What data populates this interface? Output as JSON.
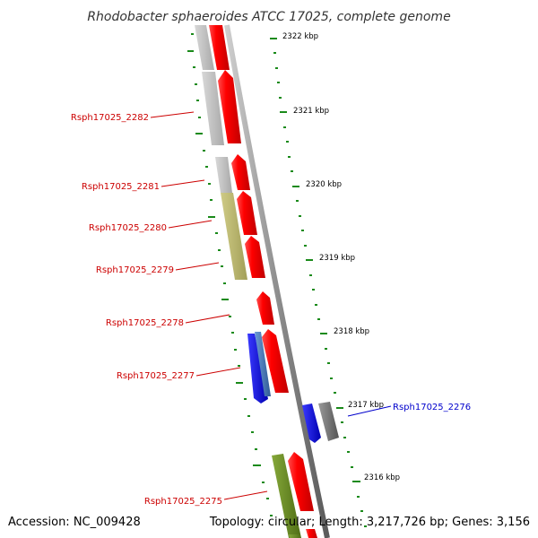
{
  "title": "Rhodobacter sphaeroides ATCC 17025, complete genome",
  "footer": {
    "accession": "Accession: NC_009428",
    "summary": "Topology: circular; Length: 3,217,726 bp; Genes: 3,156"
  },
  "kbp_labels": [
    "2322 kbp",
    "2321 kbp",
    "2320 kbp",
    "2319 kbp",
    "2318 kbp",
    "2317 kbp",
    "2316 kbp"
  ],
  "gene_labels": {
    "g2282": "Rsph17025_2282",
    "g2281": "Rsph17025_2281",
    "g2280": "Rsph17025_2280",
    "g2279": "Rsph17025_2279",
    "g2278": "Rsph17025_2278",
    "g2277": "Rsph17025_2277",
    "g2276": "Rsph17025_2276",
    "g2275": "Rsph17025_2275"
  },
  "colors": {
    "gene_label_red": "#cc0000",
    "gene_label_blue": "#0000cc",
    "cds_red": "#ff0000",
    "cds_blue": "#0000ee",
    "cds_gray": "#bbbbbb",
    "cds_khaki": "#b8b46a",
    "cds_green": "#6b8e23",
    "cds_steel": "#4a7ab8",
    "cds_darkgray": "#777777",
    "tick_green": "#1a8a1a"
  }
}
